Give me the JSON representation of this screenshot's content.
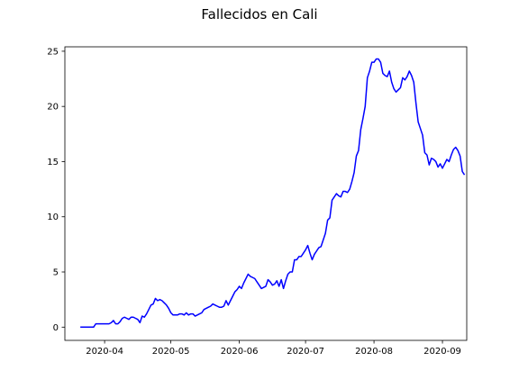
{
  "chart_data": {
    "type": "line",
    "title": "Fallecidos en Cali",
    "xlabel": "",
    "ylabel": "",
    "x_start": "2020-03-21",
    "xlim": [
      "2020-03-14",
      "2020-09-12"
    ],
    "ylim": [
      -1.2,
      25.4
    ],
    "y_ticks": [
      0,
      5,
      10,
      15,
      20,
      25
    ],
    "x_ticks": [
      "2020-04-01",
      "2020-05-01",
      "2020-06-01",
      "2020-07-01",
      "2020-08-01",
      "2020-09-01"
    ],
    "x_tick_labels": [
      "2020-04",
      "2020-05",
      "2020-06",
      "2020-07",
      "2020-08",
      "2020-09"
    ],
    "grid": false,
    "series": [
      {
        "color": "#0000ff",
        "values": [
          0.0,
          0.0,
          0.0,
          0.0,
          0.0,
          0.0,
          0.0,
          0.3,
          0.3,
          0.3,
          0.3,
          0.3,
          0.3,
          0.3,
          0.4,
          0.6,
          0.3,
          0.3,
          0.5,
          0.8,
          0.9,
          0.8,
          0.7,
          0.9,
          0.9,
          0.8,
          0.7,
          0.4,
          1.0,
          0.9,
          1.2,
          1.6,
          2.0,
          2.1,
          2.6,
          2.4,
          2.5,
          2.4,
          2.2,
          2.0,
          1.7,
          1.3,
          1.1,
          1.1,
          1.1,
          1.2,
          1.2,
          1.1,
          1.3,
          1.1,
          1.2,
          1.2,
          1.0,
          1.1,
          1.2,
          1.3,
          1.6,
          1.7,
          1.8,
          1.9,
          2.1,
          2.0,
          1.9,
          1.8,
          1.8,
          1.9,
          2.4,
          2.0,
          2.4,
          2.8,
          3.2,
          3.4,
          3.7,
          3.5,
          4.0,
          4.4,
          4.8,
          4.6,
          4.5,
          4.4,
          4.1,
          3.8,
          3.5,
          3.6,
          3.7,
          4.3,
          4.1,
          3.8,
          3.9,
          4.2,
          3.7,
          4.3,
          3.5,
          4.2,
          4.8,
          5.0,
          5.0,
          6.1,
          6.1,
          6.4,
          6.4,
          6.7,
          7.0,
          7.4,
          6.7,
          6.1,
          6.6,
          6.9,
          7.2,
          7.3,
          7.9,
          8.5,
          9.7,
          9.9,
          11.5,
          11.8,
          12.1,
          11.9,
          11.8,
          12.3,
          12.3,
          12.2,
          12.5,
          13.2,
          14.0,
          15.5,
          16.0,
          17.9,
          18.9,
          20.0,
          22.6,
          23.2,
          24.0,
          24.0,
          24.3,
          24.3,
          24.0,
          23.0,
          22.8,
          22.7,
          23.2,
          22.2,
          21.6,
          21.3,
          21.5,
          21.7,
          22.6,
          22.4,
          22.7,
          23.2,
          22.8,
          22.2,
          20.3,
          18.6,
          18.0,
          17.4,
          15.8,
          15.6,
          14.7,
          15.3,
          15.2,
          15.0,
          14.5,
          14.8,
          14.4,
          14.8,
          15.2,
          15.0,
          15.6,
          16.1,
          16.3,
          16.0,
          15.5,
          14.1,
          13.8
        ]
      }
    ]
  }
}
